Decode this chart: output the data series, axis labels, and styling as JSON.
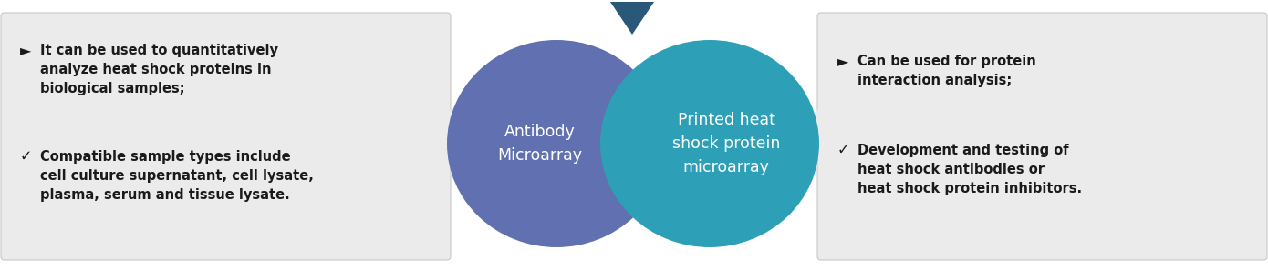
{
  "bg_color": "#ffffff",
  "left_box_color": "#ebebeb",
  "right_box_color": "#ebebeb",
  "left_ellipse_color": "#6070b0",
  "right_ellipse_color": "#2da0b8",
  "arrow_color": "#2a5878",
  "text_color_dark": "#1a1a1a",
  "text_color_white": "#ffffff",
  "left_bullet1_marker": "►",
  "left_bullet1_text": "It can be used to quantitatively\nanalyze heat shock proteins in\nbiological samples;",
  "left_bullet2_marker": "✓",
  "left_bullet2_text": "Compatible sample types include\ncell culture supernatant, cell lysate,\nplasma, serum and tissue lysate.",
  "right_bullet1_marker": "►",
  "right_bullet1_text": "Can be used for protein\ninteraction analysis;",
  "right_bullet2_marker": "✓",
  "right_bullet2_text": "Development and testing of\nheat shock antibodies or\nheat shock protein inhibitors.",
  "left_ellipse_label": "Antibody\nMicroarray",
  "right_ellipse_label": "Printed heat\nshock protein\nmicroarray",
  "font_size_text": 10.5,
  "font_size_label": 12.5,
  "fig_width": 13.9,
  "fig_height": 2.97,
  "dpi": 100
}
